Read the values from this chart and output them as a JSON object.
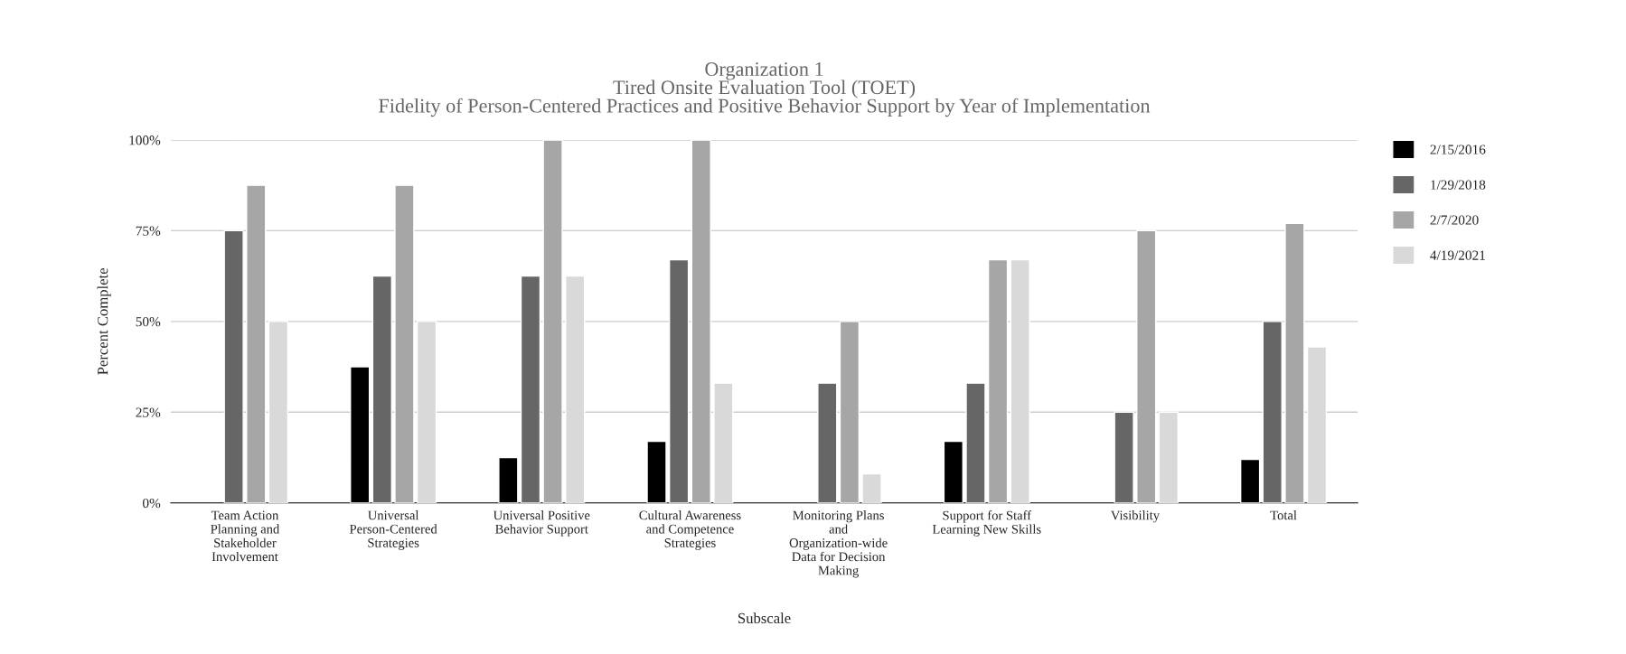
{
  "chart_data": {
    "type": "bar",
    "title": "Organization 1\nTired Onsite Evaluation Tool (TOET)\nFidelity of Person-Centered Practices and Positive Behavior Support by Year of Implementation",
    "xlabel": "Subscale",
    "ylabel": "Percent Complete",
    "categories": [
      "Team Action\nPlanning and\nStakeholder\nInvolvement",
      "Universal\nPerson-Centered\nStrategies",
      "Universal Positive\nBehavior Support",
      "Cultural Awareness\nand Competence\nStrategies",
      "Monitoring Plans\nand\nOrganization-wide\nData for Decision\nMaking",
      "Support for Staff\nLearning New Skills",
      "Visibility",
      "Total"
    ],
    "series": [
      {
        "name": "2/15/2016",
        "color": "#000000",
        "values": [
          null,
          37.5,
          12.5,
          17,
          null,
          17,
          null,
          12
        ]
      },
      {
        "name": "1/29/2018",
        "color": "#666666",
        "values": [
          75,
          62.5,
          62.5,
          67,
          33,
          33,
          25,
          50
        ]
      },
      {
        "name": "2/7/2020",
        "color": "#a6a6a6",
        "values": [
          87.5,
          87.5,
          100,
          100,
          50,
          67,
          75,
          77
        ]
      },
      {
        "name": "4/19/2021",
        "color": "#d9d9d9",
        "values": [
          50,
          50,
          62.5,
          33,
          8,
          67,
          25,
          43
        ]
      }
    ],
    "ylim": [
      0,
      100
    ],
    "yticks": [
      {
        "value": 0,
        "label": "0%"
      },
      {
        "value": 25,
        "label": "25%"
      },
      {
        "value": 50,
        "label": "50%"
      },
      {
        "value": 75,
        "label": "75%"
      },
      {
        "value": 100,
        "label": "100%"
      }
    ],
    "grid": "y",
    "legend": "top right"
  }
}
